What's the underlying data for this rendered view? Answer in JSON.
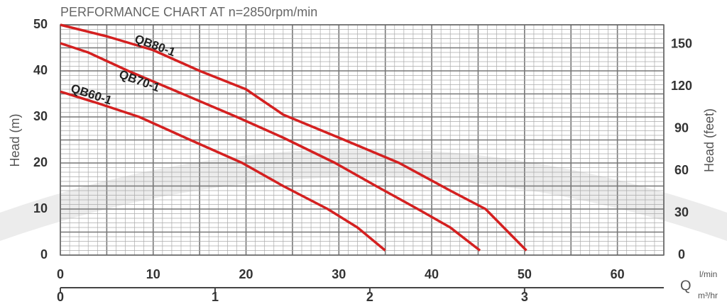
{
  "chart_data": {
    "type": "line",
    "title": "PERFORMANCE CHART AT n=2850rpm/min",
    "y_label": "Head (m)",
    "y2_label": "Head (feet)",
    "x_label": "Q",
    "x_unit": "l/min",
    "x2_unit": "m³/hr",
    "xlim": [
      0,
      65
    ],
    "xticks": [
      0,
      10,
      20,
      30,
      40,
      50,
      60
    ],
    "x2lim": [
      0,
      3.9
    ],
    "x2ticks": [
      0,
      1,
      2,
      3
    ],
    "ylim": [
      0,
      50
    ],
    "yticks": [
      0,
      10,
      20,
      30,
      40,
      50
    ],
    "y2lim": [
      0,
      164
    ],
    "y2ticks": [
      0,
      30,
      60,
      90,
      120,
      150
    ],
    "grid": true,
    "series": [
      {
        "name": "QB80-1",
        "color": "#d42020",
        "x": [
          0,
          5,
          10,
          15,
          20,
          24,
          30,
          36.5,
          42,
          45.8,
          50.2
        ],
        "values": [
          50,
          47.5,
          44.5,
          40,
          36,
          30.5,
          25.5,
          20,
          14,
          10,
          1
        ]
      },
      {
        "name": "QB70-1",
        "color": "#d42020",
        "x": [
          0,
          3,
          7.3,
          12,
          19,
          24,
          29.6,
          34,
          38.5,
          42,
          45.2
        ],
        "values": [
          46,
          44,
          40,
          36,
          30,
          25.5,
          20,
          15,
          10,
          6,
          1
        ]
      },
      {
        "name": "QB60-1",
        "color": "#d42020",
        "x": [
          0,
          4,
          8.5,
          14,
          19.6,
          24,
          28.8,
          32,
          35
        ],
        "values": [
          35.5,
          33,
          30,
          25,
          20,
          15,
          10,
          6,
          1
        ]
      }
    ]
  }
}
